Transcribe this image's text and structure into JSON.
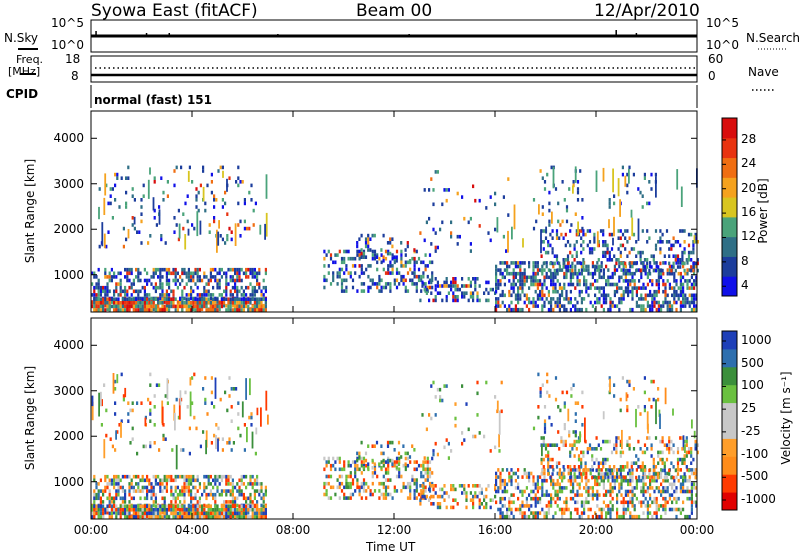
{
  "header": {
    "station": "Syowa East (fitACF)",
    "beam": "Beam 00",
    "date": "12/Apr/2010"
  },
  "noise_panel": {
    "left_label": "N.Sky",
    "right_label": "N.Search",
    "left_ticks": [
      "10^5",
      "10^0"
    ],
    "right_ticks": [
      "10^5",
      "10^0"
    ]
  },
  "freq_panel": {
    "left_label_1": "Freq.",
    "left_label_2": "[MHz]",
    "right_label": "Nave",
    "left_ticks": [
      "18",
      "8"
    ],
    "right_ticks": [
      "60",
      "0"
    ]
  },
  "cpid": {
    "label": "CPID",
    "value": "normal (fast) 151"
  },
  "colors": {
    "power_scale": [
      "#1010e8",
      "#1c3d9c",
      "#2f6f86",
      "#4aa37a",
      "#d8c520",
      "#f5a21e",
      "#f06e12",
      "#e83310",
      "#d80d0d"
    ],
    "velocity_scale": [
      "#e00000",
      "#ff3a00",
      "#ff8c1a",
      "#ff9e2a",
      "#c8c8c8",
      "#c8c8c8",
      "#6ac040",
      "#3b8f3b",
      "#2e6fae",
      "#1e3fb8"
    ]
  },
  "chart_data": [
    {
      "type": "heatmap",
      "name": "power",
      "ylabel": "Slant Range [km]",
      "yticks": [
        "4000",
        "3000",
        "2000",
        "1000"
      ],
      "ylim": [
        180,
        4600
      ],
      "xlim_hours": [
        0,
        24
      ],
      "colorbar_title": "Power [dB]",
      "colorbar_ticks": [
        "28",
        "24",
        "20",
        "16",
        "12",
        "8",
        "4"
      ],
      "clim": [
        0,
        30
      ]
    },
    {
      "type": "heatmap",
      "name": "velocity",
      "ylabel": "Slant Range [km]",
      "yticks": [
        "4000",
        "3000",
        "2000",
        "1000"
      ],
      "ylim": [
        180,
        4600
      ],
      "xlim_hours": [
        0,
        24
      ],
      "colorbar_title": "Velocity [m s⁻¹]",
      "colorbar_ticks": [
        "1000",
        "500",
        "100",
        "25",
        "-25",
        "-100",
        "-500",
        "-1000"
      ],
      "xticks": [
        "00:00",
        "04:00",
        "08:00",
        "12:00",
        "16:00",
        "20:00",
        "00:00"
      ],
      "xlabel": "Time UT"
    }
  ]
}
